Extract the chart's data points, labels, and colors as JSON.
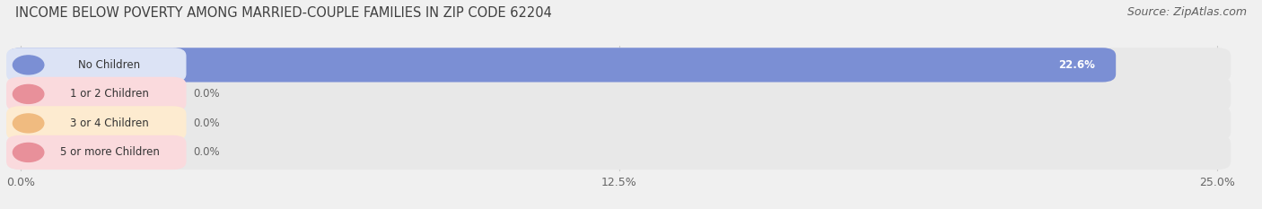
{
  "title": "INCOME BELOW POVERTY AMONG MARRIED-COUPLE FAMILIES IN ZIP CODE 62204",
  "source": "Source: ZipAtlas.com",
  "categories": [
    "No Children",
    "1 or 2 Children",
    "3 or 4 Children",
    "5 or more Children"
  ],
  "values": [
    22.6,
    0.0,
    0.0,
    0.0
  ],
  "bar_colors": [
    "#7b8fd4",
    "#e8909a",
    "#f0bb80",
    "#e8909a"
  ],
  "label_bg_colors": [
    "#dce3f5",
    "#fadadd",
    "#fdebd0",
    "#fadadd"
  ],
  "circle_colors": [
    "#7b8fd4",
    "#e8909a",
    "#f0bb80",
    "#e8909a"
  ],
  "track_color": "#e8e8e8",
  "xlim": [
    0,
    25.0
  ],
  "xticks": [
    0.0,
    12.5,
    25.0
  ],
  "xtick_labels": [
    "0.0%",
    "12.5%",
    "25.0%"
  ],
  "bar_height": 0.62,
  "background_color": "#f0f0f0",
  "plot_bg_color": "#f0f0f0",
  "title_fontsize": 10.5,
  "source_fontsize": 9,
  "tick_fontsize": 9,
  "label_fontsize": 8.5,
  "value_fontsize": 8.5,
  "grid_color": "#d8d8d8",
  "title_color": "#404040",
  "source_color": "#606060",
  "value_color_inside": "#ffffff",
  "value_color_outside": "#666666"
}
